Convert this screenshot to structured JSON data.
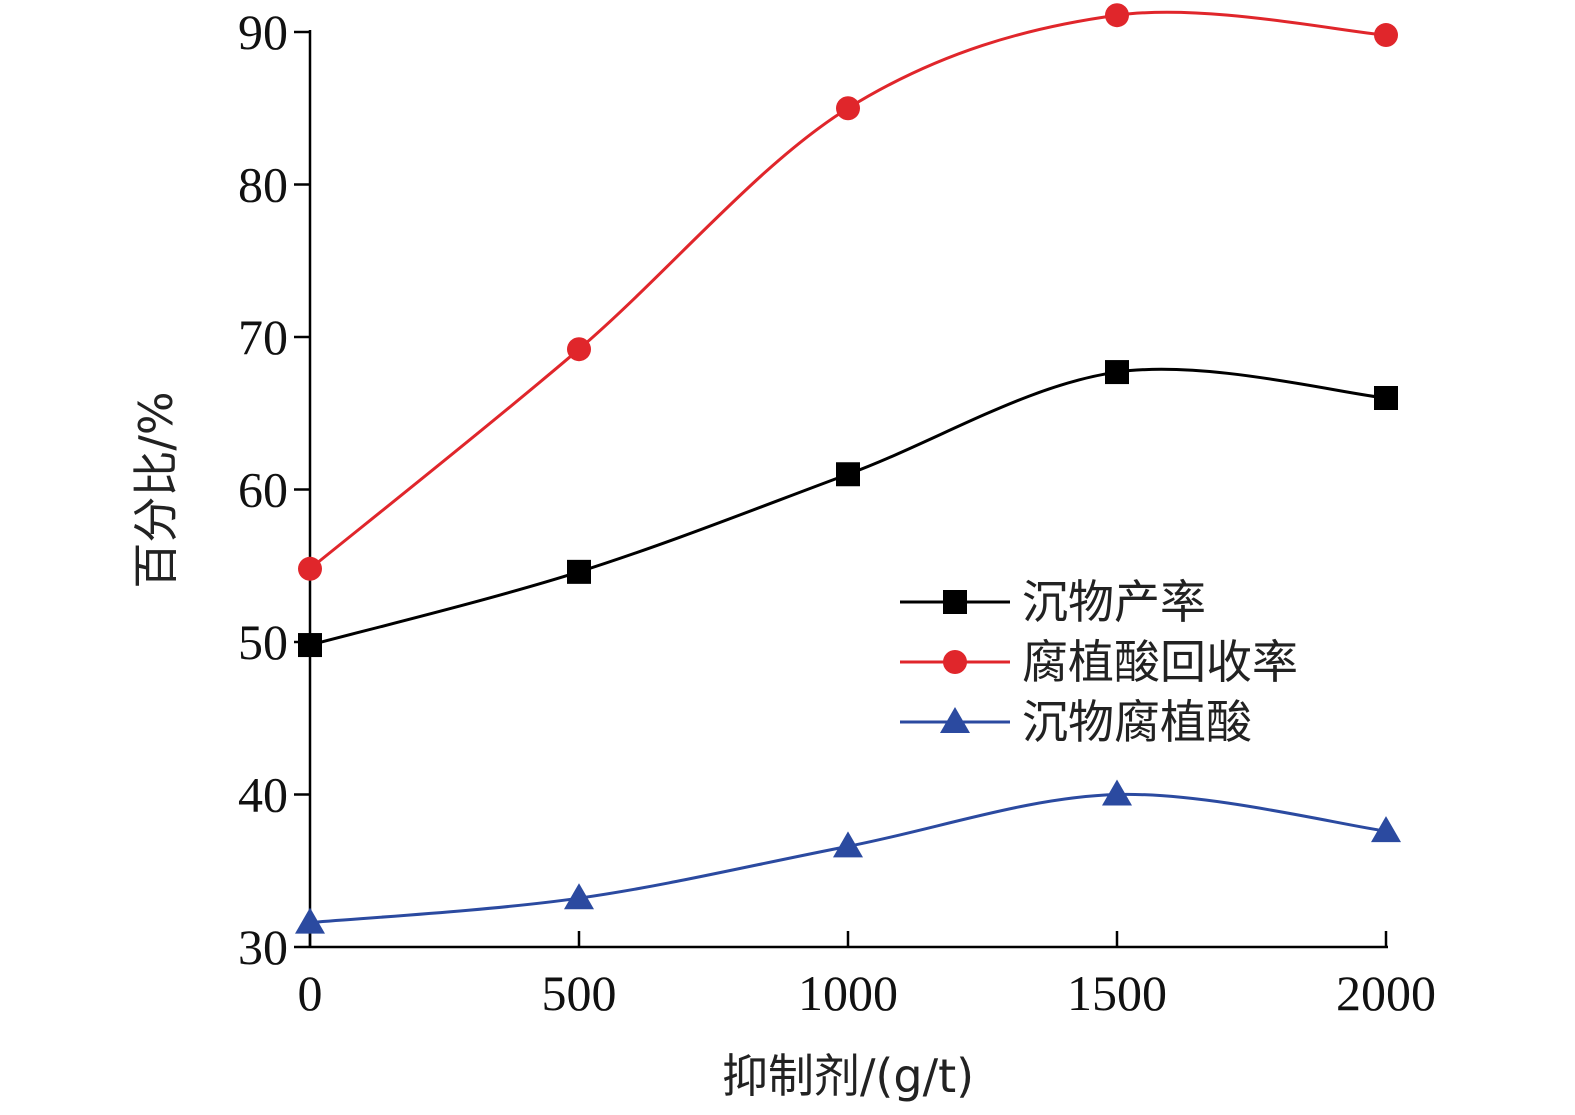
{
  "chart_data": {
    "type": "line",
    "xlabel": "抑制剂/(g/t)",
    "ylabel": "百分比/%",
    "x": [
      0,
      500,
      1000,
      1500,
      2000
    ],
    "xlim": [
      0,
      2000
    ],
    "ylim": [
      30,
      90
    ],
    "xticks": [
      "0",
      "500",
      "1000",
      "1500",
      "2000"
    ],
    "yticks": [
      "30",
      "40",
      "50",
      "60",
      "70",
      "80",
      "90"
    ],
    "grid": false,
    "legend_position": "center-right",
    "series": [
      {
        "name": "沉物产率",
        "values": [
          49.8,
          54.6,
          61.0,
          67.7,
          66.0
        ],
        "color": "#000000",
        "marker": "square"
      },
      {
        "name": "腐植酸回收率",
        "values": [
          54.8,
          69.2,
          85.0,
          91.1,
          89.8
        ],
        "color": "#e0262b",
        "marker": "circle"
      },
      {
        "name": "沉物腐植酸",
        "values": [
          31.6,
          33.2,
          36.6,
          40.0,
          37.6
        ],
        "color": "#2b4aa0",
        "marker": "triangle"
      }
    ]
  }
}
